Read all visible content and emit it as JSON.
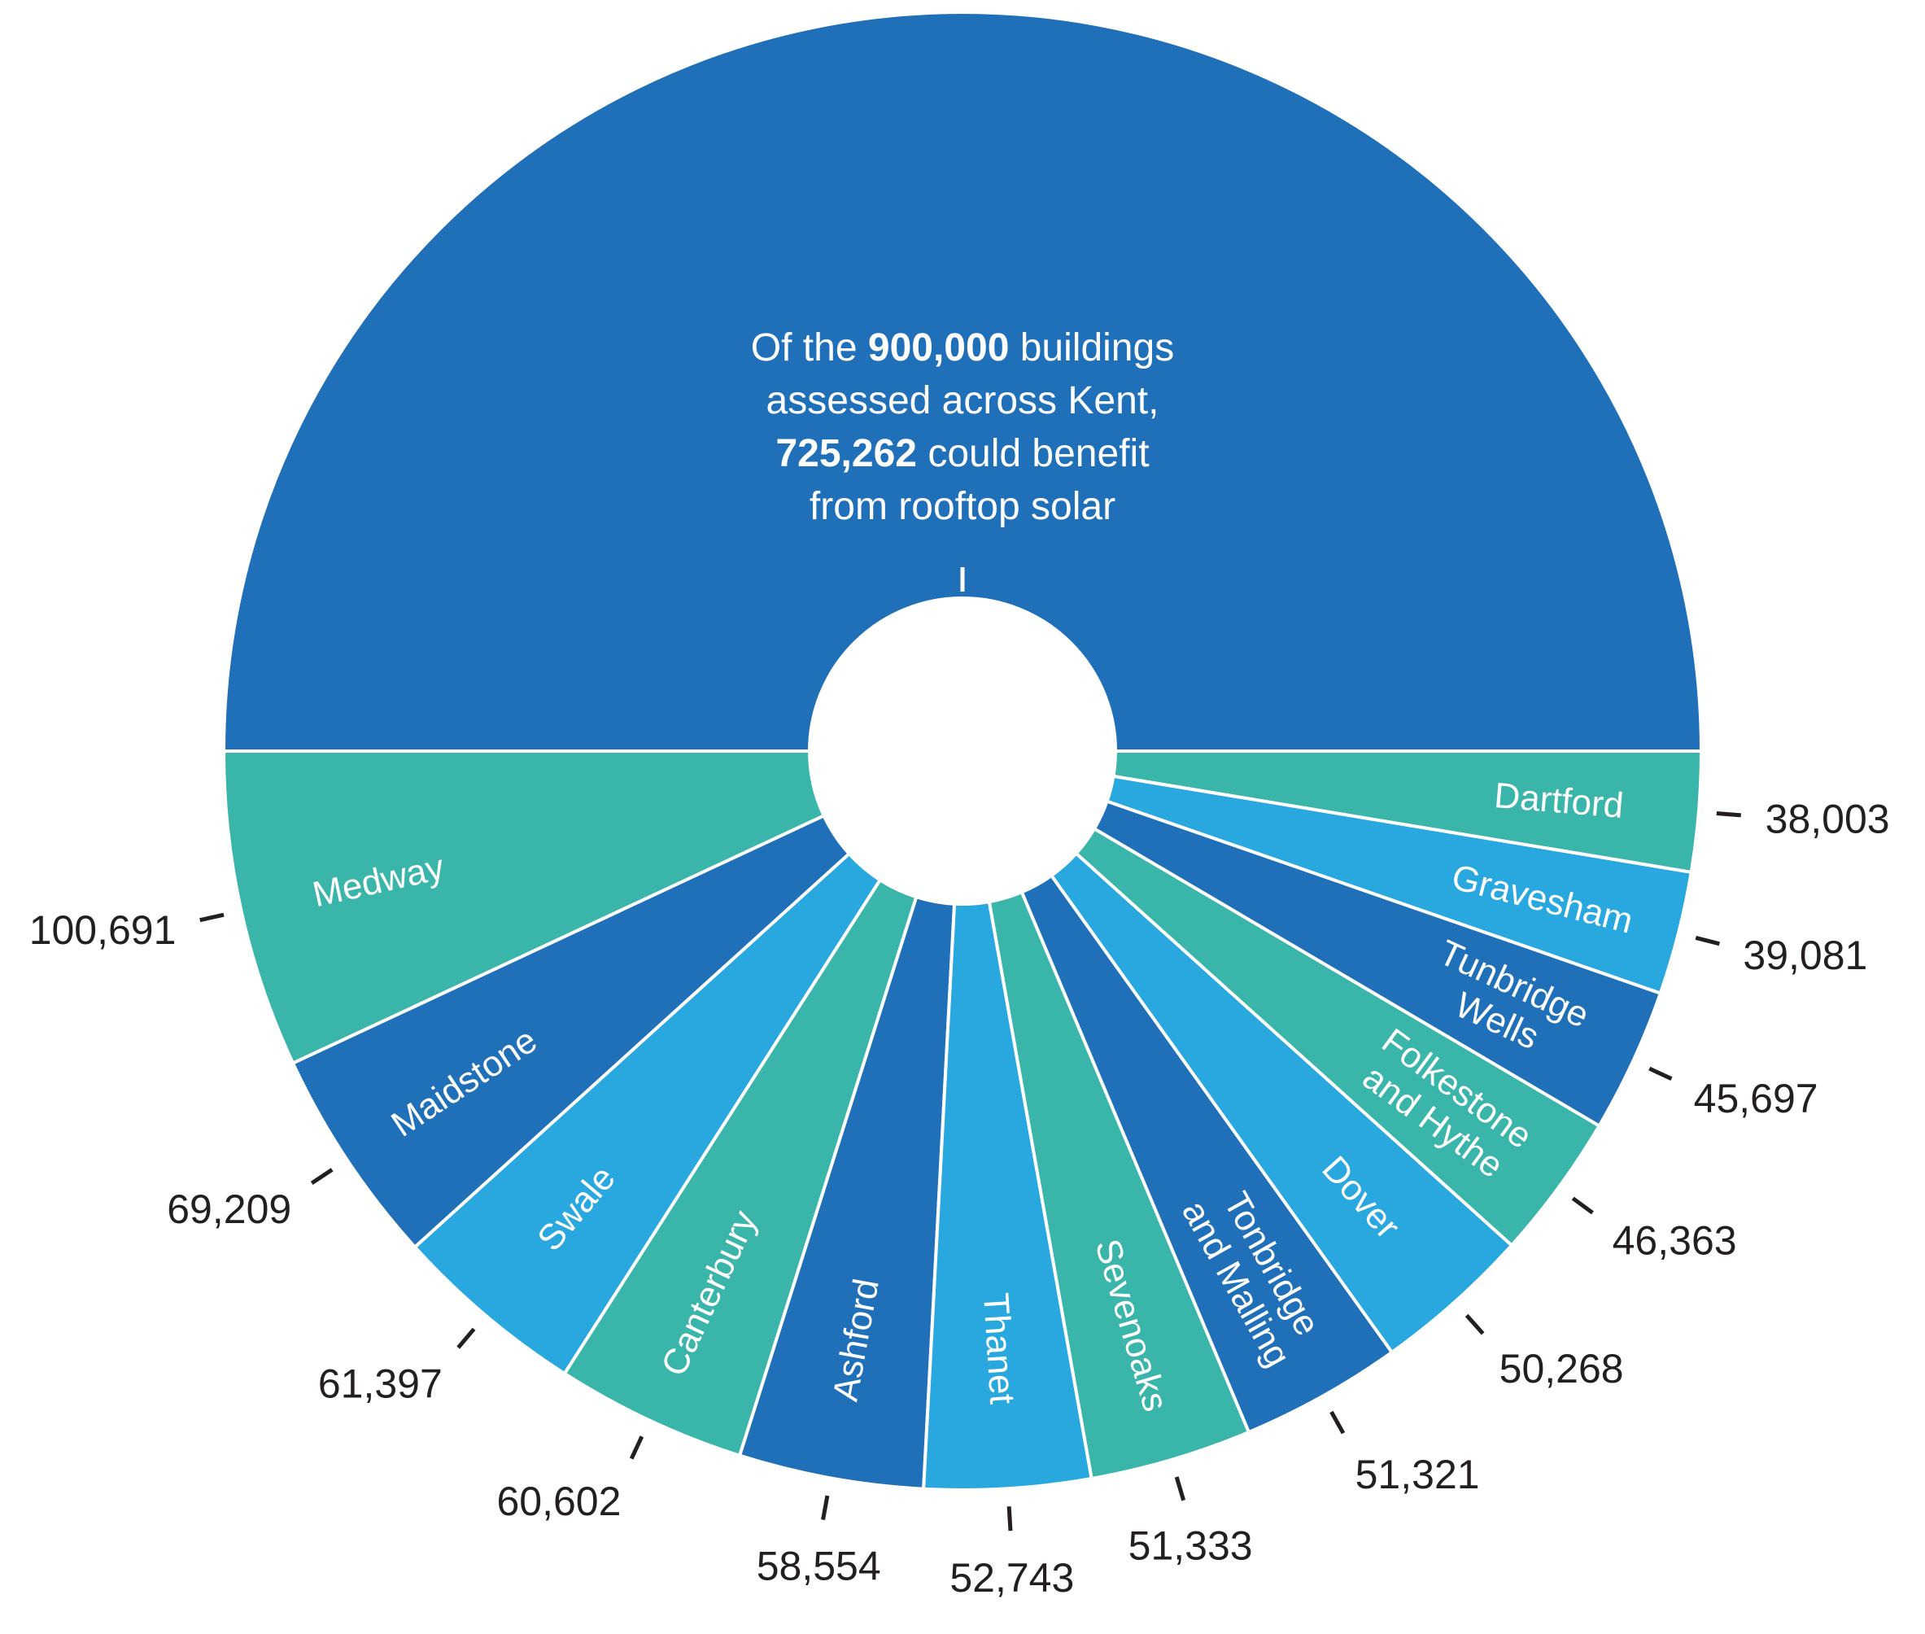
{
  "centre_text": {
    "line1_pre": "Of the ",
    "line1_bold": "900,000",
    "line1_post": " buildings",
    "line2": "assessed across Kent,",
    "line3_bold": "725,262",
    "line3_post": " could benefit",
    "line4": "from rooftop solar"
  },
  "colors": {
    "top_blue": "#1f70b8",
    "teal": "#3ab5aa",
    "dark_blue": "#1f70b8",
    "light_blue": "#29a8e0",
    "text_dark": "#231f20"
  },
  "chart_data": {
    "type": "pie",
    "style": "donut",
    "half_total": 725262,
    "categories": [
      "Medway",
      "Maidstone",
      "Swale",
      "Canterbury",
      "Ashford",
      "Thanet",
      "Sevenoaks",
      "Tonbridge and Malling",
      "Dover",
      "Folkestone and Hythe",
      "Tunbridge Wells",
      "Gravesham",
      "Dartford"
    ],
    "labels": [
      [
        "Medway"
      ],
      [
        "Maidstone"
      ],
      [
        "Swale"
      ],
      [
        "Canterbury"
      ],
      [
        "Ashford"
      ],
      [
        "Thanet"
      ],
      [
        "Sevenoaks"
      ],
      [
        "Tonbridge",
        "and Malling"
      ],
      [
        "Dover"
      ],
      [
        "Folkestone",
        "and Hythe"
      ],
      [
        "Tunbridge",
        "Wells"
      ],
      [
        "Gravesham"
      ],
      [
        "Dartford"
      ]
    ],
    "values": [
      100691,
      69209,
      61397,
      60602,
      58554,
      52743,
      51333,
      51321,
      50268,
      46363,
      45697,
      39081,
      38003
    ],
    "value_labels": [
      "100,691",
      "69,209",
      "61,397",
      "60,602",
      "58,554",
      "52,743",
      "51,333",
      "51,321",
      "50,268",
      "46,363",
      "45,697",
      "39,081",
      "38,003"
    ],
    "segment_colors": [
      "teal",
      "dark_blue",
      "light_blue",
      "teal",
      "dark_blue",
      "light_blue",
      "teal",
      "dark_blue",
      "light_blue",
      "teal",
      "dark_blue",
      "light_blue",
      "teal"
    ]
  }
}
